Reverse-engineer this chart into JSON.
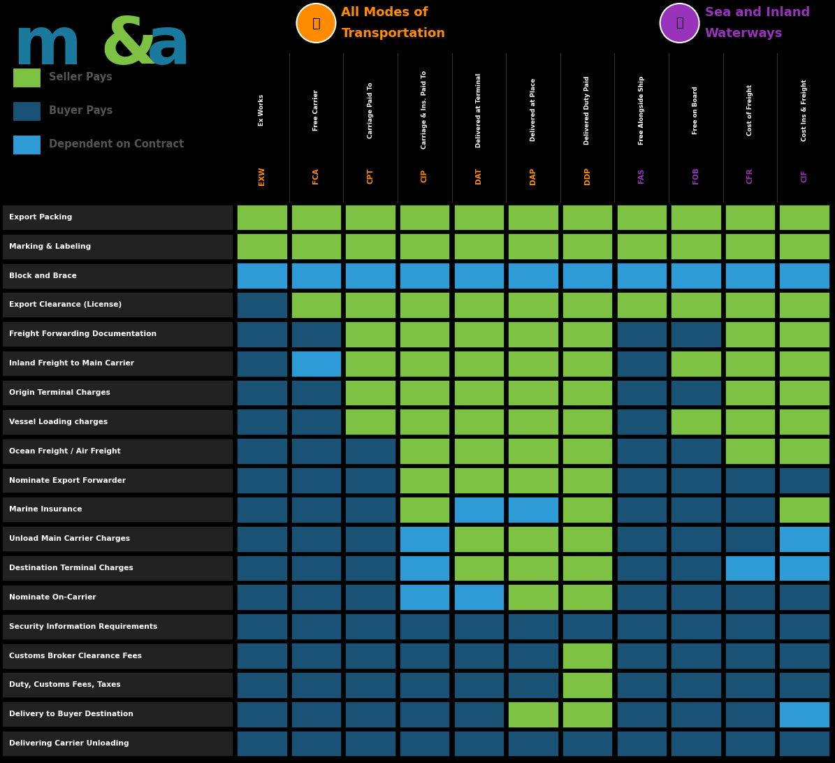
{
  "col_abbr": [
    "EXW",
    "FCA",
    "CPT",
    "CIP",
    "DAT",
    "DAP",
    "DDP",
    "FAS",
    "FOB",
    "CFR",
    "CIF"
  ],
  "col_subtitle": [
    "Ex Works",
    "Free Carrier",
    "Carriage Paid To",
    "Carriage & Ins. Paid To",
    "Delivered at Terminal",
    "Delivered at Place",
    "Delivered Duty Paid",
    "Free Alongside Ship",
    "Free on Board",
    "Cost of Freight",
    "Cost Ins & Freight"
  ],
  "col_abbr_colors": [
    "#FF8C00",
    "#FF8C00",
    "#FF8C00",
    "#FF8C00",
    "#FF8C00",
    "#FF8C00",
    "#FF8C00",
    "#9933BB",
    "#9933BB",
    "#9933BB",
    "#9933BB"
  ],
  "rows": [
    "Export Packing",
    "Marking & Labeling",
    "Block and Brace",
    "Export Clearance (License)",
    "Freight Forwarding Documentation",
    "Inland Freight to Main Carrier",
    "Origin Terminal Charges",
    "Vessel Loading charges",
    "Ocean Freight / Air Freight",
    "Nominate Export Forwarder",
    "Marine Insurance",
    "Unload Main Carrier Charges",
    "Destination Terminal Charges",
    "Nominate On-Carrier",
    "Security Information Requirements",
    "Customs Broker Clearance Fees",
    "Duty, Customs Fees, Taxes",
    "Delivery to Buyer Destination",
    "Delivering Carrier Unloading"
  ],
  "G": "#7DC243",
  "B": "#1A5276",
  "L": "#2E9BD6",
  "orange_bar": "#FF8C00",
  "purple_bar": "#9933BB",
  "header_bg": "#1A1A1A",
  "black_bg": "#000000",
  "row_label_bg": "#222222",
  "seller_color": "#7DC243",
  "buyer_color": "#1A5276",
  "dependent_color": "#2E9BD6",
  "legend_text_color": "#555555",
  "white": "#FFFFFF",
  "matrix": [
    [
      "G",
      "G",
      "G",
      "G",
      "G",
      "G",
      "G",
      "G",
      "G",
      "G",
      "G"
    ],
    [
      "G",
      "G",
      "G",
      "G",
      "G",
      "G",
      "G",
      "G",
      "G",
      "G",
      "G"
    ],
    [
      "L",
      "L",
      "L",
      "L",
      "L",
      "L",
      "L",
      "L",
      "L",
      "L",
      "L"
    ],
    [
      "B",
      "G",
      "G",
      "G",
      "G",
      "G",
      "G",
      "G",
      "G",
      "G",
      "G"
    ],
    [
      "B",
      "B",
      "G",
      "G",
      "G",
      "G",
      "G",
      "B",
      "B",
      "G",
      "G"
    ],
    [
      "B",
      "L",
      "G",
      "G",
      "G",
      "G",
      "G",
      "B",
      "G",
      "G",
      "G"
    ],
    [
      "B",
      "B",
      "G",
      "G",
      "G",
      "G",
      "G",
      "B",
      "B",
      "G",
      "G"
    ],
    [
      "B",
      "B",
      "G",
      "G",
      "G",
      "G",
      "G",
      "B",
      "G",
      "G",
      "G"
    ],
    [
      "B",
      "B",
      "B",
      "G",
      "G",
      "G",
      "G",
      "B",
      "B",
      "G",
      "G"
    ],
    [
      "B",
      "B",
      "B",
      "G",
      "G",
      "G",
      "G",
      "B",
      "B",
      "B",
      "B"
    ],
    [
      "B",
      "B",
      "B",
      "G",
      "L",
      "L",
      "G",
      "B",
      "B",
      "B",
      "G"
    ],
    [
      "B",
      "B",
      "B",
      "L",
      "G",
      "G",
      "G",
      "B",
      "B",
      "B",
      "L"
    ],
    [
      "B",
      "B",
      "B",
      "L",
      "G",
      "G",
      "G",
      "B",
      "B",
      "L",
      "L"
    ],
    [
      "B",
      "B",
      "B",
      "L",
      "L",
      "G",
      "G",
      "B",
      "B",
      "B",
      "B"
    ],
    [
      "B",
      "B",
      "B",
      "B",
      "B",
      "B",
      "B",
      "B",
      "B",
      "B",
      "B"
    ],
    [
      "B",
      "B",
      "B",
      "B",
      "B",
      "B",
      "G",
      "B",
      "B",
      "B",
      "B"
    ],
    [
      "B",
      "B",
      "B",
      "B",
      "B",
      "B",
      "G",
      "B",
      "B",
      "B",
      "B"
    ],
    [
      "B",
      "B",
      "B",
      "B",
      "B",
      "G",
      "G",
      "B",
      "B",
      "B",
      "L"
    ],
    [
      "B",
      "B",
      "B",
      "B",
      "B",
      "B",
      "B",
      "B",
      "B",
      "B",
      "B"
    ]
  ],
  "logo_m_color": "#1A7A9E",
  "logo_amp_color": "#7DC243",
  "logo_a_color": "#1A7A9E",
  "all_modes_label": "All Modes of\nTransportation",
  "sea_inland_label": "Sea and Inland\nWaterways"
}
